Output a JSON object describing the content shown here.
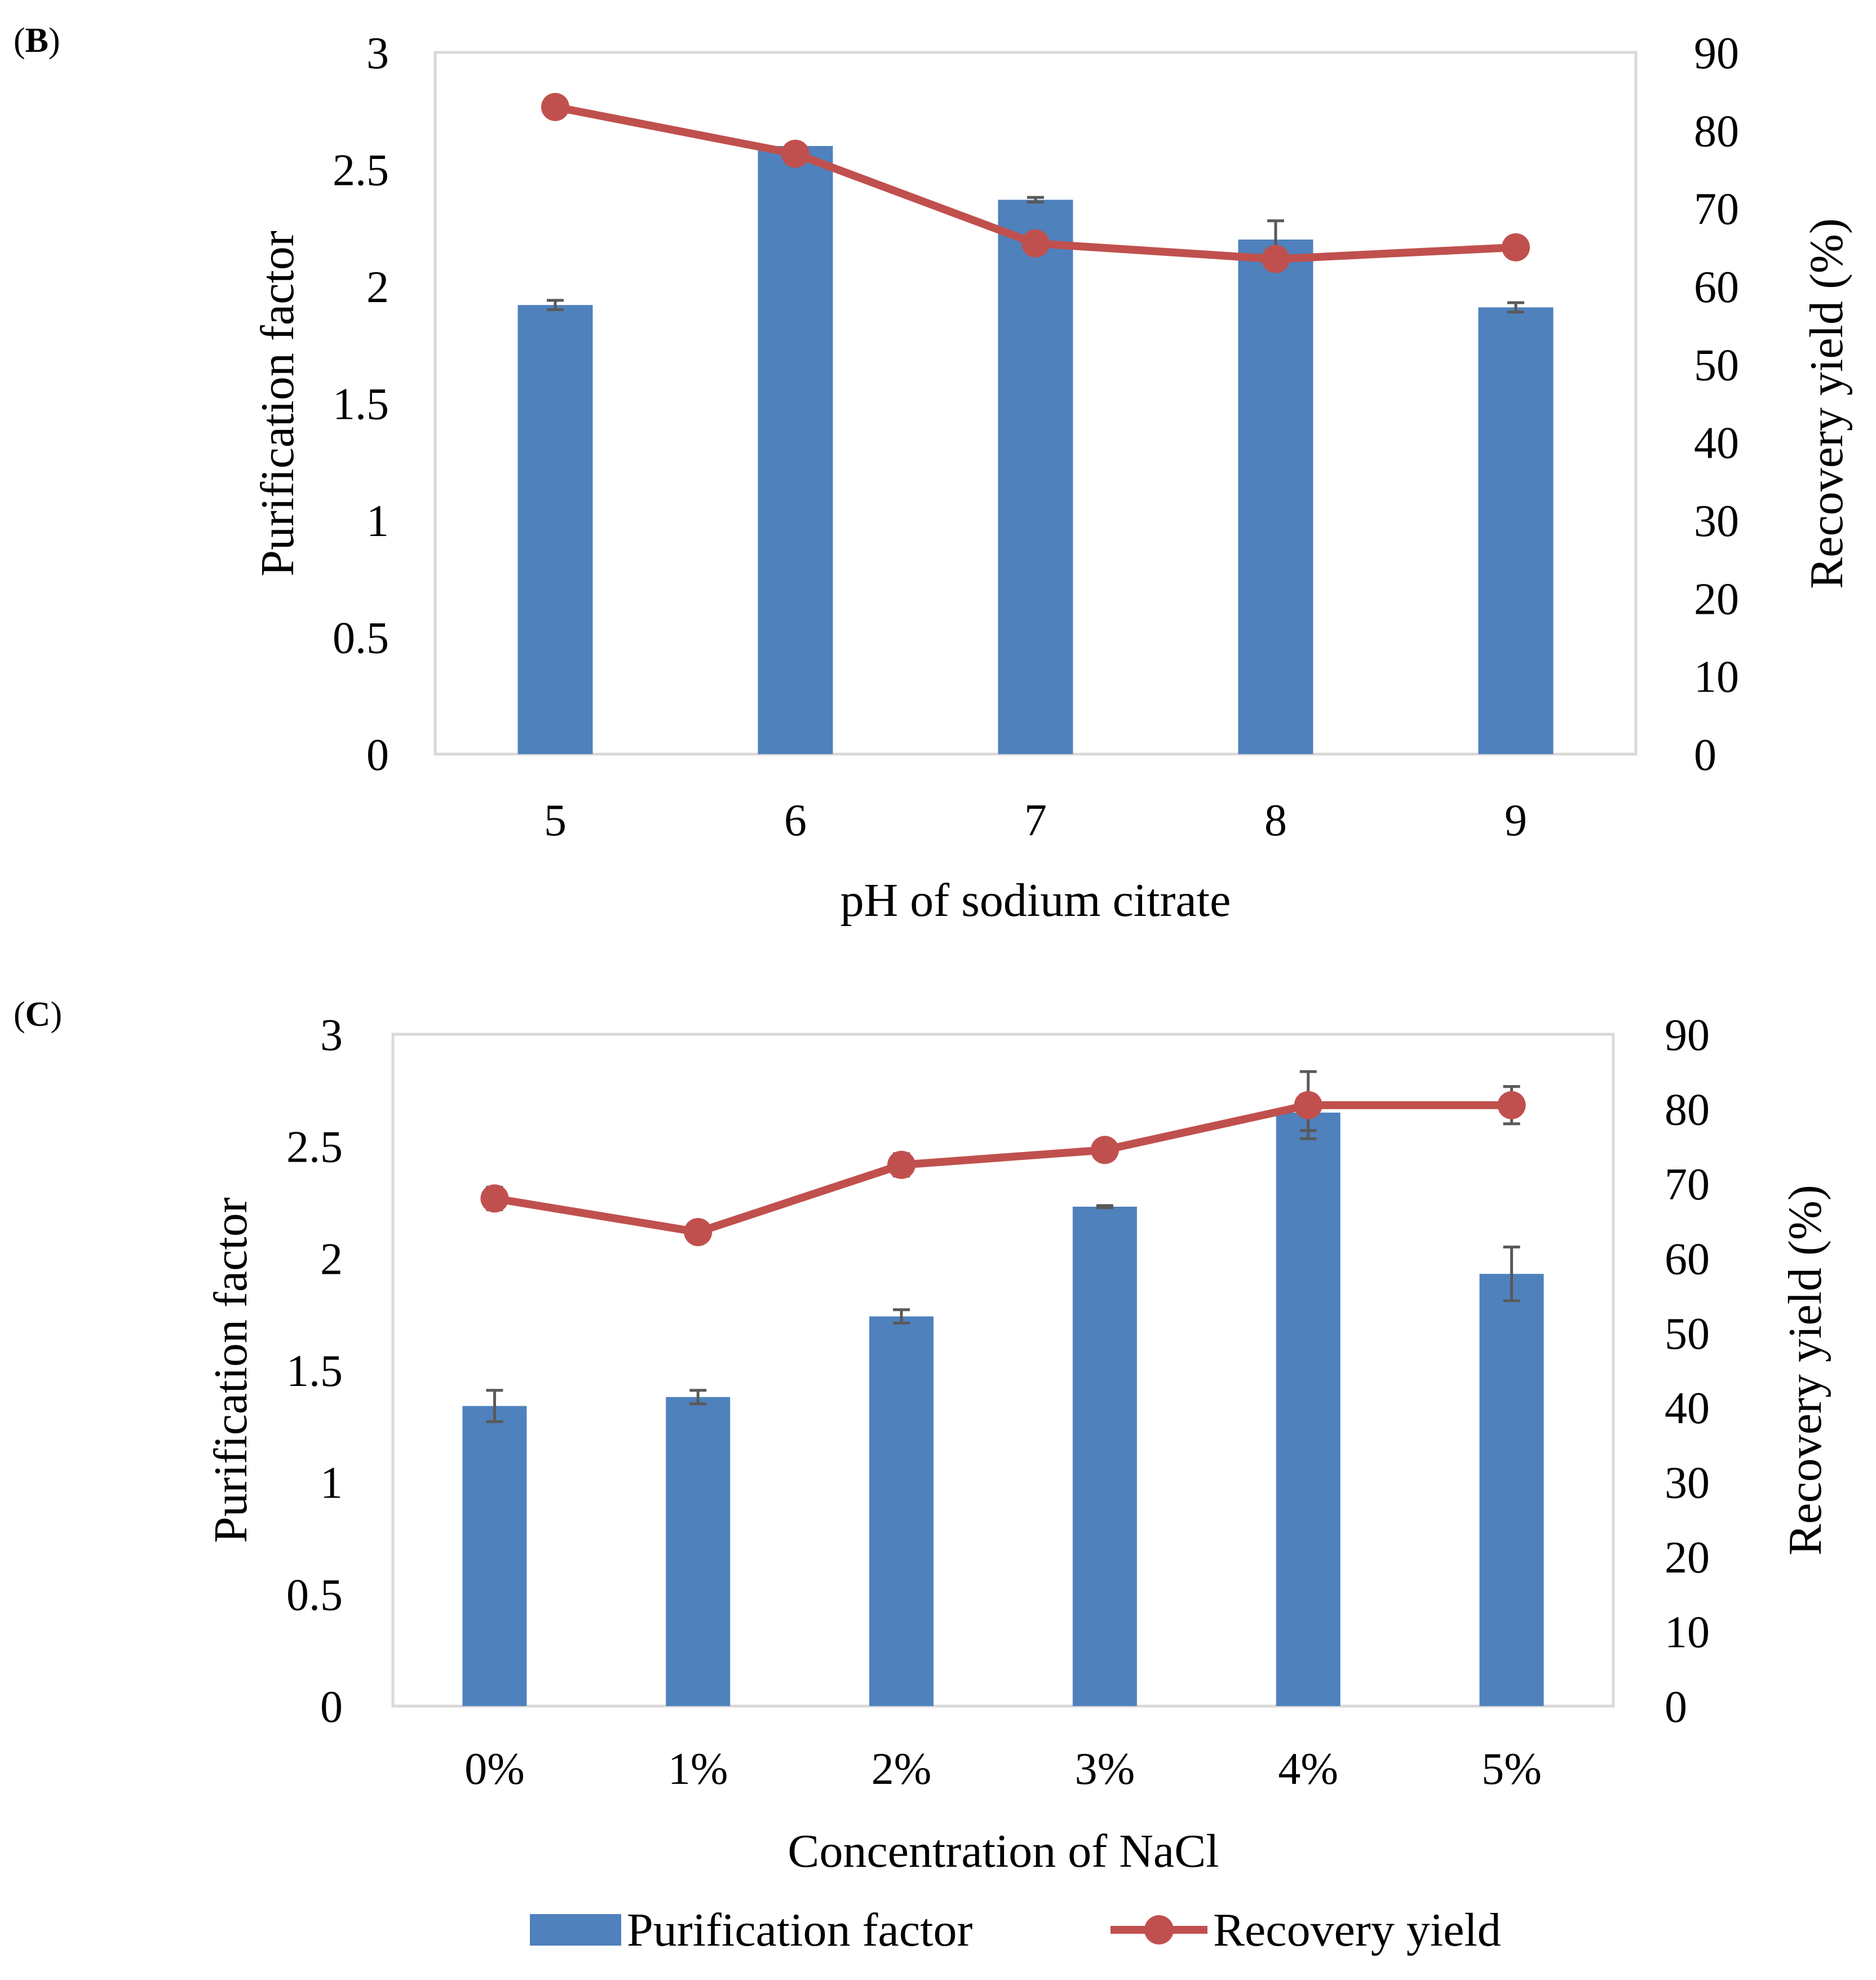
{
  "colors": {
    "bar": "#4f81bd",
    "line": "#c0504d",
    "error": "#595959",
    "frame": "#d9d9d9"
  },
  "legend": {
    "bar_label": "Purification factor",
    "line_label": "Recovery yield"
  },
  "chart_data": [
    {
      "type": "bar+line",
      "panel_label": "B",
      "categories": [
        "5",
        "6",
        "7",
        "8",
        "9"
      ],
      "xlabel": "pH of sodium citrate",
      "ylabel_left": "Purification factor",
      "ylabel_right": "Recovery yield (%)",
      "ylim_left": [
        0,
        3
      ],
      "ylim_right": [
        0,
        90
      ],
      "yticks_left": [
        "0",
        "0.5",
        "1",
        "1.5",
        "2",
        "2.5",
        "3"
      ],
      "yticks_right": [
        "0",
        "10",
        "20",
        "30",
        "40",
        "50",
        "60",
        "70",
        "80",
        "90"
      ],
      "grid": false,
      "series": [
        {
          "name": "Purification factor",
          "type": "bar",
          "axis": "left",
          "values": [
            1.92,
            2.6,
            2.37,
            2.2,
            1.91
          ],
          "errors": [
            0.02,
            0.01,
            0.01,
            0.08,
            0.02
          ]
        },
        {
          "name": "Recovery yield",
          "type": "line",
          "axis": "right",
          "values": [
            83,
            77,
            65.5,
            63.5,
            65
          ],
          "errors": [
            0,
            0,
            0,
            0,
            0
          ]
        }
      ]
    },
    {
      "type": "bar+line",
      "panel_label": "C",
      "categories": [
        "0%",
        "1%",
        "2%",
        "3%",
        "4%",
        "5%"
      ],
      "xlabel": "Concentration of NaCl",
      "ylabel_left": "Purification factor",
      "ylabel_right": "Recovery yield (%)",
      "ylim_left": [
        0,
        3
      ],
      "ylim_right": [
        0,
        90
      ],
      "yticks_left": [
        "0",
        "0.5",
        "1",
        "1.5",
        "2",
        "2.5",
        "3"
      ],
      "yticks_right": [
        "0",
        "10",
        "20",
        "30",
        "40",
        "50",
        "60",
        "70",
        "80",
        "90"
      ],
      "grid": false,
      "series": [
        {
          "name": "Purification factor",
          "type": "bar",
          "axis": "left",
          "values": [
            1.34,
            1.38,
            1.74,
            2.23,
            2.65,
            1.93
          ],
          "errors": [
            0.07,
            0.03,
            0.03,
            0.005,
            0.08,
            0.12
          ]
        },
        {
          "name": "Recovery yield",
          "type": "line",
          "axis": "right",
          "values": [
            68,
            63.5,
            72.5,
            74.5,
            80.5,
            80.5
          ],
          "errors": [
            1.5,
            0.5,
            1.5,
            0.5,
            4.5,
            2.5
          ]
        }
      ]
    }
  ]
}
